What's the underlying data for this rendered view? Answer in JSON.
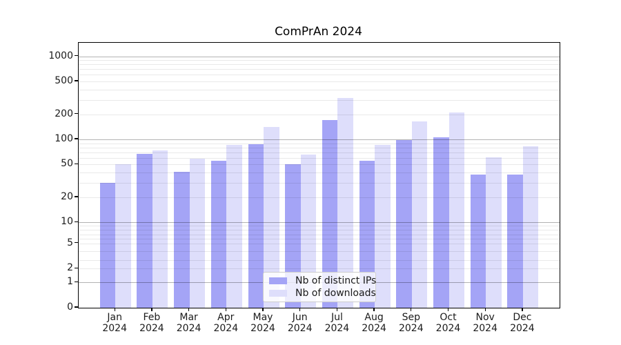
{
  "title": "ComPrAn 2024",
  "legend": {
    "items": [
      {
        "label": "Nb of distinct IPs",
        "color": "#a4a4f6"
      },
      {
        "label": "Nb of downloads",
        "color": "#dedefb"
      }
    ],
    "position": "lower center"
  },
  "colors": {
    "bar_dark": "#a4a4f6",
    "bar_light": "#dedefb",
    "grid_major": "#b0b0b0",
    "grid_minor": "#e8e8e8",
    "spine": "#000000",
    "background": "#ffffff"
  },
  "chart_data": {
    "type": "bar",
    "title": "ComPrAn 2024",
    "categories": [
      "Jan 2024",
      "Feb 2024",
      "Mar 2024",
      "Apr 2024",
      "May 2024",
      "Jun 2024",
      "Jul 2024",
      "Aug 2024",
      "Sep 2024",
      "Oct 2024",
      "Nov 2024",
      "Dec 2024"
    ],
    "series": [
      {
        "name": "Nb of distinct IPs",
        "color": "#a4a4f6",
        "values": [
          30,
          67,
          41,
          55,
          88,
          50,
          172,
          55,
          98,
          106,
          38,
          38
        ]
      },
      {
        "name": "Nb of downloads",
        "color": "#dedefb",
        "values": [
          50,
          73,
          59,
          86,
          142,
          66,
          315,
          86,
          164,
          210,
          61,
          82
        ]
      }
    ],
    "xlabel": "",
    "ylabel": "",
    "yscale": "symlog",
    "y_ticks": [
      0,
      1,
      2,
      5,
      10,
      20,
      50,
      100,
      200,
      500,
      1000
    ],
    "ylim": [
      0,
      1400
    ],
    "grid": true,
    "legend_position": "lower center"
  }
}
